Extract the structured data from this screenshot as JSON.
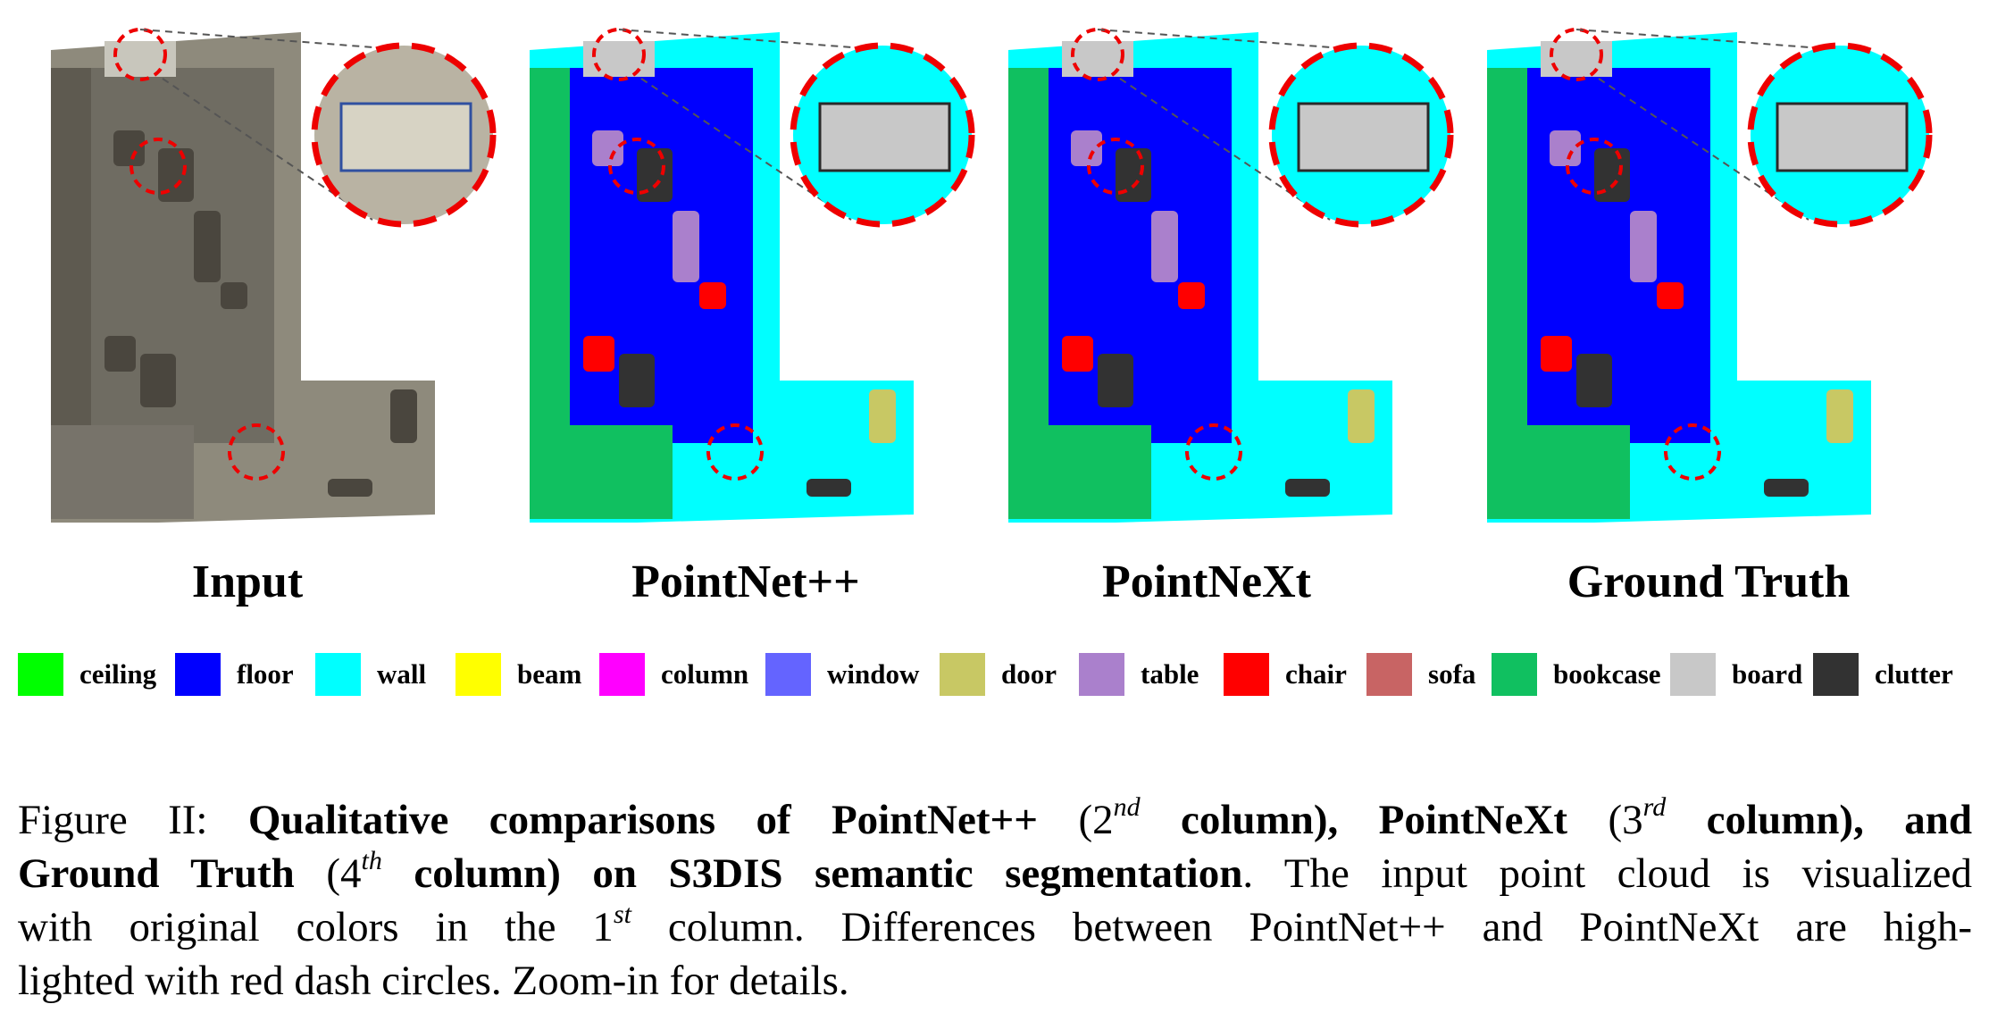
{
  "panels": [
    {
      "title": "Input"
    },
    {
      "title": "PointNet++"
    },
    {
      "title": "PointNeXt"
    },
    {
      "title": "Ground Truth"
    }
  ],
  "legend": [
    {
      "label": "ceiling",
      "color": "#00ff00"
    },
    {
      "label": "floor",
      "color": "#0000ff"
    },
    {
      "label": "wall",
      "color": "#00ffff"
    },
    {
      "label": "beam",
      "color": "#ffff00"
    },
    {
      "label": "column",
      "color": "#ff00ff"
    },
    {
      "label": "window",
      "color": "#6464ff"
    },
    {
      "label": "door",
      "color": "#c8c864"
    },
    {
      "label": "table",
      "color": "#aa80cc"
    },
    {
      "label": "chair",
      "color": "#ff0000"
    },
    {
      "label": "sofa",
      "color": "#c86464"
    },
    {
      "label": "bookcase",
      "color": "#10c060"
    },
    {
      "label": "board",
      "color": "#c8c8c8"
    },
    {
      "label": "clutter",
      "color": "#323232"
    }
  ],
  "caption": {
    "lines": [
      [
        {
          "text": "Figure II: ",
          "style": "normal"
        },
        {
          "text": "Qualitative comparisons of PointNet++",
          "style": "bold"
        },
        {
          "text": " (2",
          "style": "normal"
        },
        {
          "text": "nd",
          "style": "sup"
        },
        {
          "text": " column), PointNeXt",
          "style": "bold"
        },
        {
          "text": " (3",
          "style": "normal"
        },
        {
          "text": "rd",
          "style": "sup"
        },
        {
          "text": " column), and",
          "style": "bold"
        }
      ],
      [
        {
          "text": "Ground Truth",
          "style": "bold"
        },
        {
          "text": " (4",
          "style": "normal"
        },
        {
          "text": "th",
          "style": "sup"
        },
        {
          "text": " column) on S3DIS semantic segmentation",
          "style": "bold"
        },
        {
          "text": ". The input point cloud is visualized",
          "style": "normal"
        }
      ],
      [
        {
          "text": "with original colors in the 1",
          "style": "normal"
        },
        {
          "text": "st",
          "style": "sup"
        },
        {
          "text": " column. Differences between PointNet++ and PointNeXt are high-",
          "style": "normal"
        }
      ],
      [
        {
          "text": "lighted with red dash circles. Zoom-in for details.",
          "style": "normal"
        }
      ]
    ]
  }
}
